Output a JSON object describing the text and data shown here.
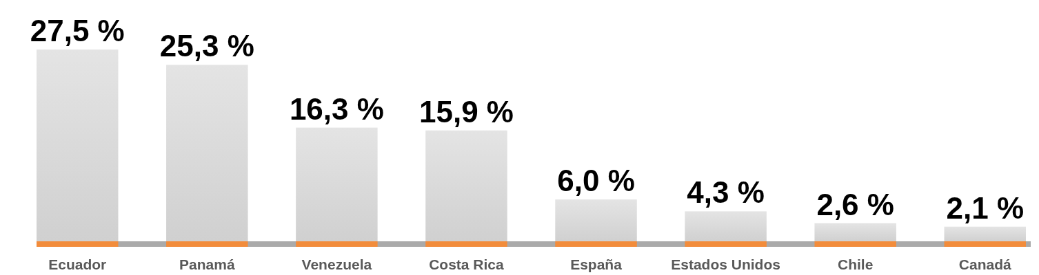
{
  "chart_data": {
    "type": "bar",
    "categories": [
      "Ecuador",
      "Panamá",
      "Venezuela",
      "Costa Rica",
      "España",
      "Estados Unidos",
      "Chile",
      "Canadá"
    ],
    "values": [
      27.5,
      25.3,
      16.3,
      15.9,
      6.0,
      4.3,
      2.6,
      2.1
    ],
    "value_labels": [
      "27,5 %",
      "25,3 %",
      "16,3 %",
      "15,9 %",
      "6,0 %",
      "4,3 %",
      "2,6 %",
      "2,1 %"
    ],
    "color": "#e8e8e8"
  }
}
